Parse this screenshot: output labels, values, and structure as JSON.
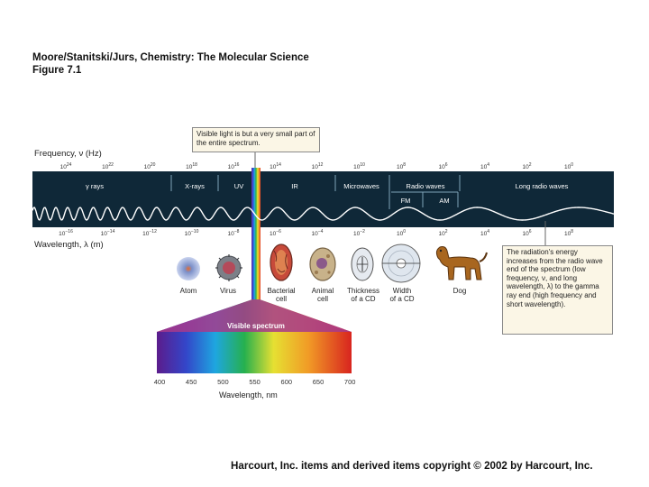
{
  "header": {
    "line1": "Moore/Stanitski/Jurs, Chemistry: The Molecular Science",
    "line2": "Figure 7.1"
  },
  "callouts": {
    "top": "Visible light is but a very small part of the entire spectrum.",
    "right": "The radiation's energy increases from the radio wave end of the spectrum (low frequency, ν, and long wavelength, λ) to the gamma ray end (high frequency and short wavelength)."
  },
  "frequency": {
    "title": "Frequency, ν (Hz)",
    "ticks": [
      {
        "base": "10",
        "exp": "24"
      },
      {
        "base": "10",
        "exp": "22"
      },
      {
        "base": "10",
        "exp": "20"
      },
      {
        "base": "10",
        "exp": "18"
      },
      {
        "base": "10",
        "exp": "16"
      },
      {
        "base": "10",
        "exp": "14"
      },
      {
        "base": "10",
        "exp": "12"
      },
      {
        "base": "10",
        "exp": "10"
      },
      {
        "base": "10",
        "exp": "8"
      },
      {
        "base": "10",
        "exp": "6"
      },
      {
        "base": "10",
        "exp": "4"
      },
      {
        "base": "10",
        "exp": "2"
      },
      {
        "base": "10",
        "exp": "0"
      }
    ]
  },
  "wavelength": {
    "title": "Wavelength, λ (m)",
    "ticks": [
      {
        "base": "10",
        "exp": "−16"
      },
      {
        "base": "10",
        "exp": "−14"
      },
      {
        "base": "10",
        "exp": "−12"
      },
      {
        "base": "10",
        "exp": "−10"
      },
      {
        "base": "10",
        "exp": "−8"
      },
      {
        "base": "10",
        "exp": "−6"
      },
      {
        "base": "10",
        "exp": "−4"
      },
      {
        "base": "10",
        "exp": "−2"
      },
      {
        "base": "10",
        "exp": "0"
      },
      {
        "base": "10",
        "exp": "2"
      },
      {
        "base": "10",
        "exp": "4"
      },
      {
        "base": "10",
        "exp": "6"
      },
      {
        "base": "10",
        "exp": "8"
      }
    ]
  },
  "regions": {
    "gamma": "γ rays",
    "xray": "X-rays",
    "uv": "UV",
    "ir": "IR",
    "microwaves": "Microwaves",
    "radio": "Radio waves",
    "fm": "FM",
    "am": "AM",
    "long_radio": "Long radio waves"
  },
  "objects": {
    "atom": "Atom",
    "virus": "Virus",
    "bacterial_cell": "Bacterial\ncell",
    "animal_cell": "Animal\ncell",
    "cd_thickness": "Thickness\nof a CD",
    "cd_width": "Width\nof a CD",
    "dog": "Dog"
  },
  "visible": {
    "label": "Visible spectrum",
    "axis_title": "Wavelength, nm",
    "ticks": [
      "400",
      "450",
      "500",
      "550",
      "600",
      "650",
      "700"
    ]
  },
  "footer": "Harcourt, Inc. items and derived items copyright © 2002 by Harcourt, Inc."
}
